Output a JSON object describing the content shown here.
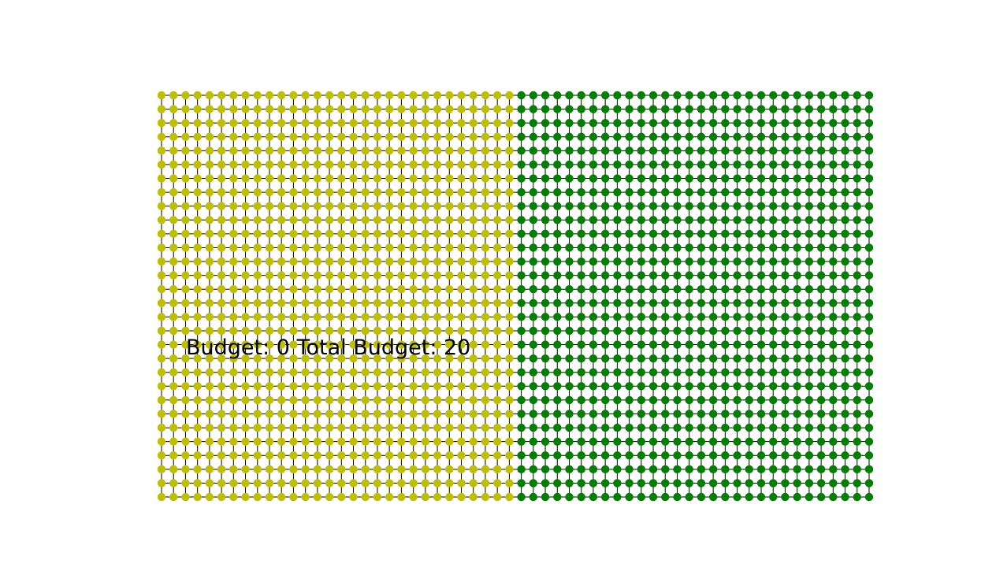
{
  "board": {
    "rows": 30,
    "cols": 60,
    "colors": {
      "left_region": "#bfbf00",
      "right_region": "#007f00",
      "edge": "#000000",
      "background": "#ffffff"
    },
    "split_after_col": 30
  },
  "status": {
    "budget_prefix": "Budget: ",
    "budget_value": "0",
    "total_prefix": " Total Budget: ",
    "total_value": "20"
  }
}
